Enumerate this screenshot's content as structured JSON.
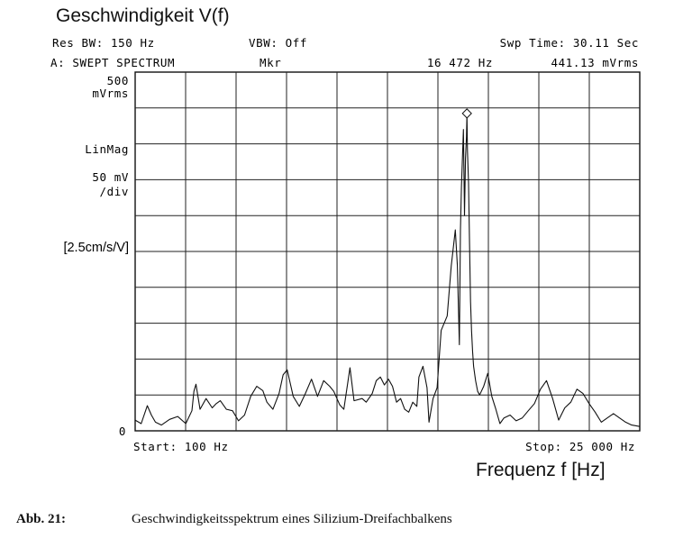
{
  "header": {
    "title": "Geschwindigkeit V(f)",
    "res_bw": "Res BW:  150 Hz",
    "vbw": "VBW:  Off",
    "swp_time": "Swp Time:  30.11  Sec",
    "mode": "A: SWEPT SPECTRUM",
    "mkr_label": "Mkr",
    "mkr_freq": "16 472 Hz",
    "mkr_value": "441.13 mVrms"
  },
  "y_axis": {
    "top_value": "500",
    "top_unit": "mVrms",
    "scale_mode": "LinMag",
    "per_div_value": "50 mV",
    "per_div_unit": "/div",
    "sensitivity": "[2.5cm/s/V]",
    "zero": "0"
  },
  "x_axis": {
    "start": "Start:  100 Hz",
    "stop": "Stop:  25 000 Hz",
    "unit_label": "Frequenz  f   [Hz]"
  },
  "caption": {
    "label": "Abb. 21:",
    "text": "Geschwindigkeitsspektrum eines Silizium-Dreifachbalkens"
  },
  "chart_data": {
    "type": "line",
    "xlim": [
      100,
      25000
    ],
    "ylim": [
      0,
      500
    ],
    "x_divisions": 10,
    "y_divisions": 10,
    "grid": true,
    "series": [
      {
        "color": "#111111",
        "x": [
          100,
          400,
          700,
          900,
          1100,
          1400,
          1800,
          2200,
          2600,
          2900,
          3000,
          3100,
          3300,
          3600,
          3900,
          4100,
          4300,
          4600,
          4900,
          5200,
          5500,
          5800,
          6100,
          6400,
          6600,
          6900,
          7200,
          7400,
          7600,
          7900,
          8200,
          8500,
          8800,
          9100,
          9400,
          9700,
          9900,
          10200,
          10400,
          10700,
          10900,
          11300,
          11500,
          11700,
          11800,
          12000,
          12200,
          12400,
          12600,
          12800,
          13000,
          13200,
          13400,
          13600,
          13800,
          14000,
          14100,
          14300,
          14500,
          14600,
          14800,
          15000,
          15200,
          15500,
          15700,
          15900,
          16000,
          16100,
          16150,
          16200,
          16250,
          16300,
          16350,
          16400,
          16450,
          16472,
          16500,
          16550,
          16600,
          16650,
          16700,
          16750,
          16800,
          16900,
          17000,
          17100,
          17300,
          17500,
          17700,
          17900,
          18100,
          18300,
          18600,
          18900,
          19200,
          19500,
          19800,
          20100,
          20400,
          20700,
          21000,
          21300,
          21600,
          21900,
          22200,
          22500,
          22800,
          23100,
          23400,
          23700,
          24000,
          24300,
          24600,
          25000
        ],
        "y": [
          15,
          10,
          35,
          22,
          12,
          8,
          16,
          20,
          10,
          28,
          55,
          65,
          30,
          45,
          32,
          38,
          42,
          30,
          28,
          14,
          22,
          48,
          62,
          56,
          40,
          30,
          52,
          78,
          85,
          48,
          34,
          52,
          72,
          48,
          70,
          62,
          55,
          36,
          30,
          88,
          42,
          45,
          40,
          48,
          52,
          70,
          75,
          64,
          72,
          62,
          40,
          45,
          30,
          26,
          40,
          34,
          75,
          90,
          60,
          12,
          45,
          60,
          140,
          160,
          230,
          280,
          230,
          120,
          280,
          340,
          380,
          420,
          300,
          380,
          410,
          441,
          390,
          345,
          260,
          180,
          140,
          110,
          90,
          70,
          55,
          50,
          62,
          80,
          48,
          30,
          10,
          18,
          22,
          14,
          18,
          28,
          38,
          58,
          70,
          45,
          15,
          32,
          40,
          58,
          52,
          38,
          26,
          12,
          18,
          24,
          18,
          12,
          8,
          6
        ]
      }
    ],
    "marker": {
      "x": 16472,
      "y": 441.13
    },
    "annotations": [
      "Mkr",
      "16 472 Hz",
      "441.13 mVrms"
    ]
  }
}
